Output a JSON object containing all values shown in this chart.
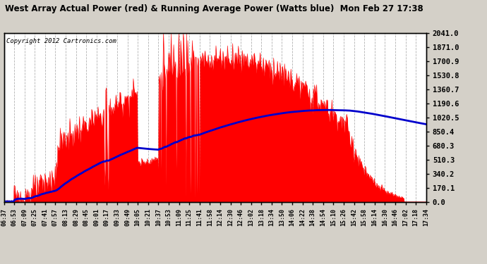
{
  "title": "West Array Actual Power (red) & Running Average Power (Watts blue)  Mon Feb 27 17:38",
  "copyright": "Copyright 2012 Cartronics.com",
  "ylabel_right": [
    "2041.0",
    "1871.0",
    "1700.9",
    "1530.8",
    "1360.7",
    "1190.6",
    "1020.5",
    "850.4",
    "680.3",
    "510.3",
    "340.2",
    "170.1",
    "0.0"
  ],
  "ymax": 2041.0,
  "ymin": 0.0,
  "plot_bg_color": "#ffffff",
  "title_bg": "#d4d0c8",
  "grid_color": "#aaaaaa",
  "fill_color": "#ff0000",
  "avg_color": "#0000cc",
  "tick_labels": [
    "06:37",
    "06:53",
    "07:09",
    "07:25",
    "07:41",
    "07:57",
    "08:13",
    "08:29",
    "08:45",
    "09:01",
    "09:17",
    "09:33",
    "09:49",
    "10:05",
    "10:21",
    "10:37",
    "10:53",
    "11:09",
    "11:25",
    "11:41",
    "11:58",
    "12:14",
    "12:30",
    "12:46",
    "13:02",
    "13:18",
    "13:34",
    "13:50",
    "14:06",
    "14:22",
    "14:38",
    "14:54",
    "15:10",
    "15:26",
    "15:42",
    "15:58",
    "16:14",
    "16:30",
    "16:46",
    "17:02",
    "17:18",
    "17:34"
  ]
}
